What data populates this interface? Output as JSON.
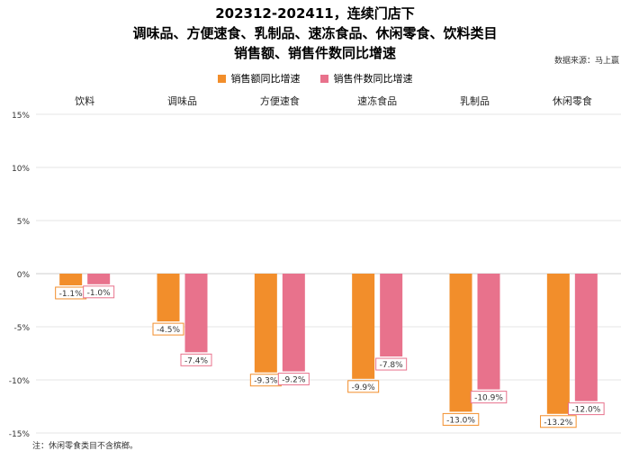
{
  "title_lines": [
    "202312-202411，连续门店下",
    "调味品、方便速食、乳制品、速冻食品、休闲零食、饮料类目",
    "销售额、销售件数同比增速"
  ],
  "source": "数据来源：马上赢",
  "note": "注：休闲零食类目不含槟榔。",
  "chart_data": {
    "type": "bar",
    "categories": [
      "饮料",
      "调味品",
      "方便速食",
      "速冻食品",
      "乳制品",
      "休闲零食"
    ],
    "series": [
      {
        "name": "销售额同比增速",
        "color": "#F28E2B",
        "values": [
          -1.1,
          -4.5,
          -9.3,
          -9.9,
          -13.0,
          -13.2
        ]
      },
      {
        "name": "销售件数同比增速",
        "color": "#E8728C",
        "values": [
          -1.0,
          -7.4,
          -9.2,
          -7.8,
          -10.9,
          -12.0
        ]
      }
    ],
    "yticks": [
      "15%",
      "10%",
      "5%",
      "0%",
      "-5%",
      "-10%",
      "-15%"
    ],
    "ylim": [
      -15,
      15
    ],
    "category_axis_position": "top",
    "legend_position": "top-center",
    "grid": true
  }
}
